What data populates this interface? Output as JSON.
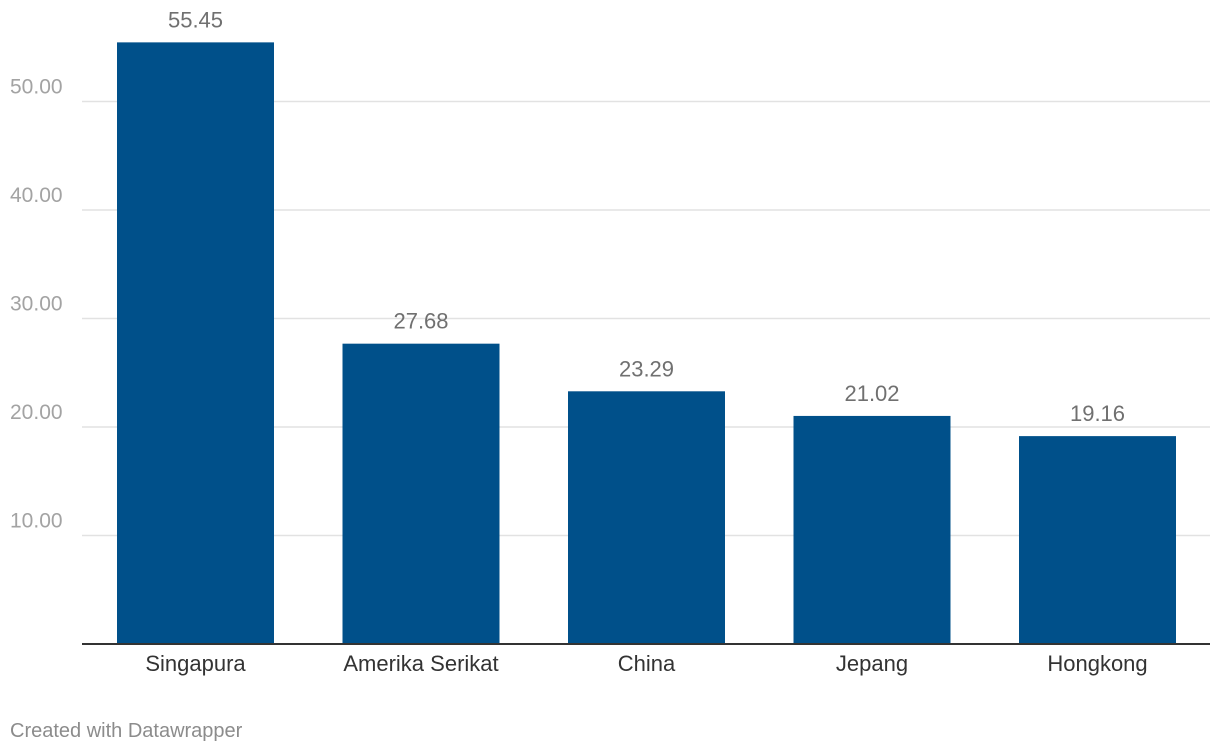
{
  "chart_data": {
    "type": "bar",
    "categories": [
      "Singapura",
      "Amerika Serikat",
      "China",
      "Jepang",
      "Hongkong"
    ],
    "values": [
      55.45,
      27.68,
      23.29,
      21.02,
      19.16
    ],
    "value_labels": [
      "55.45",
      "27.68",
      "23.29",
      "21.02",
      "19.16"
    ],
    "yticks": [
      10,
      20,
      30,
      40,
      50
    ],
    "ytick_labels": [
      "10.00",
      "20.00",
      "30.00",
      "40.00",
      "50.00"
    ],
    "ylim": [
      0,
      60
    ],
    "grid": true,
    "title": "",
    "xlabel": "",
    "ylabel": "",
    "bar_color": "#00508a",
    "grid_color": "#e2e2e2",
    "baseline_color": "#333333"
  },
  "footer": {
    "credit": "Created with Datawrapper"
  }
}
